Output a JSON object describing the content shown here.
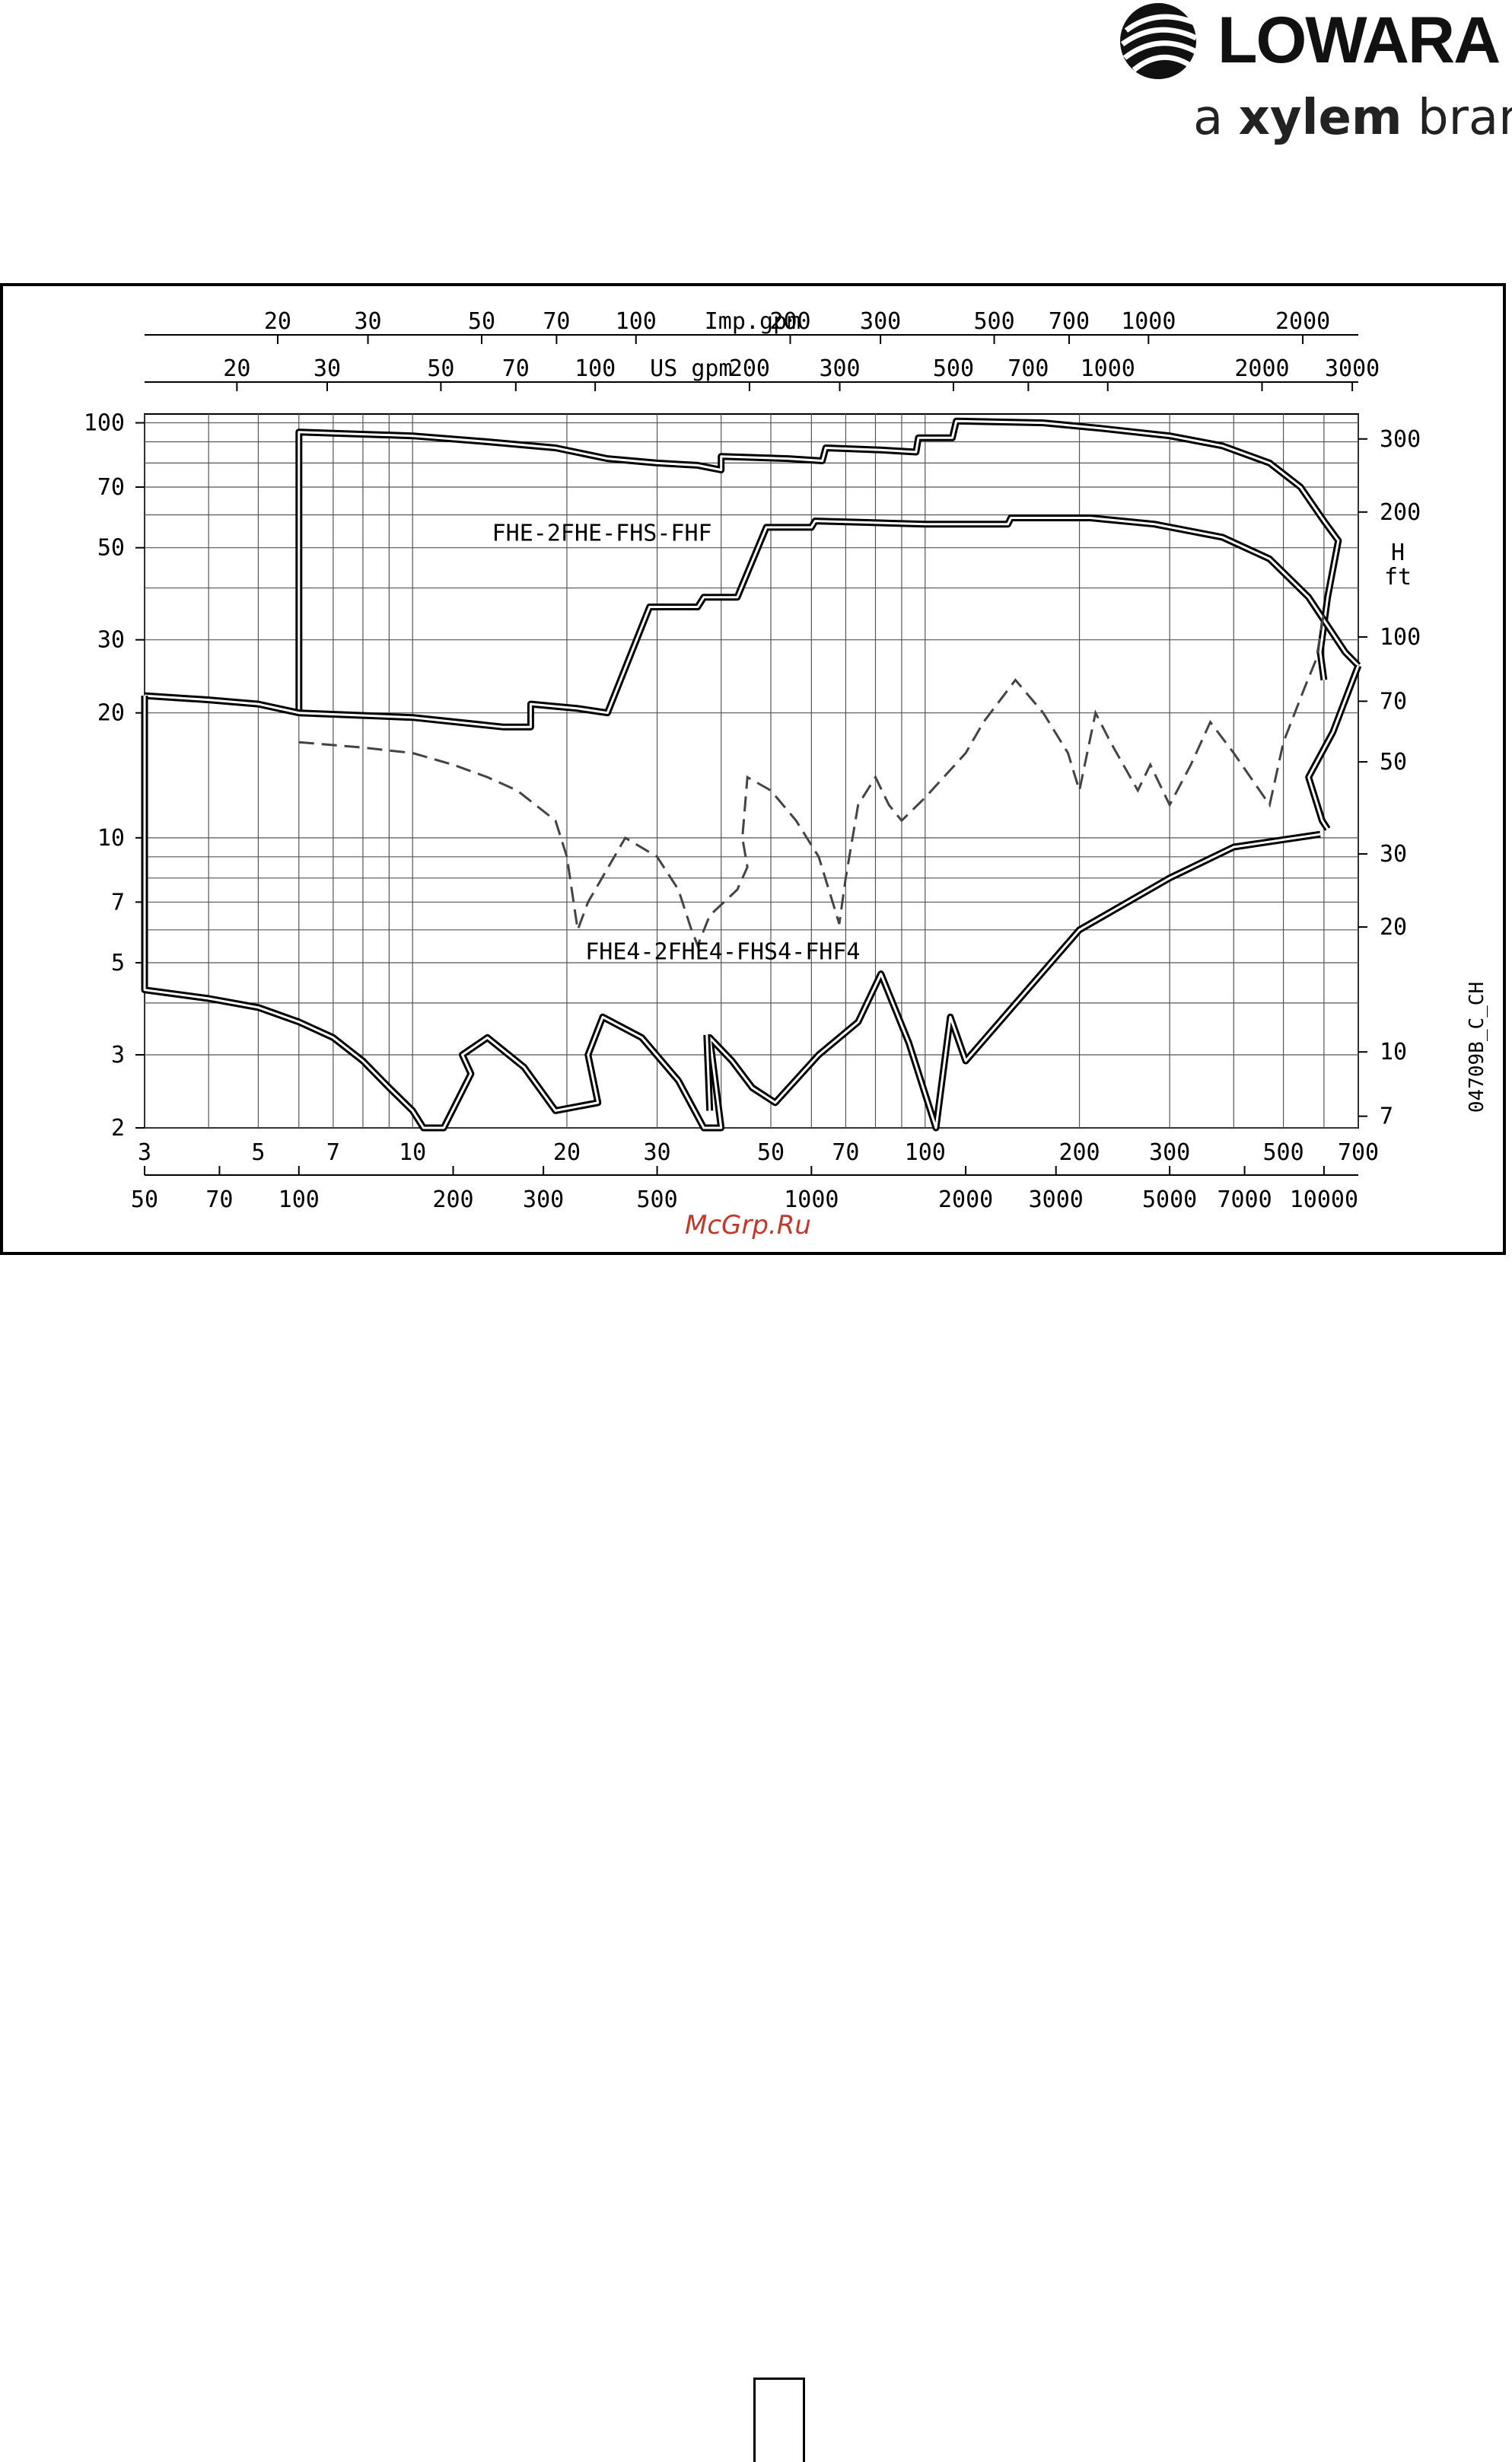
{
  "brand": {
    "name": "LOWARA",
    "tagline_pre": "a ",
    "tagline_bold": "xylem",
    "tagline_post": " brand",
    "logo_icon": "lowara-swirl-icon",
    "color": "#111111"
  },
  "watermark": "McGrp.Ru",
  "chart_data": {
    "type": "line",
    "title": "",
    "code": "04709B_C_CH",
    "scale": "log-log",
    "grid": true,
    "axes": {
      "x_bottom_inner": {
        "ticks": [
          "3",
          "5",
          "7",
          "10",
          "20",
          "30",
          "50",
          "70",
          "100",
          "200",
          "300",
          "500",
          "700"
        ],
        "range": [
          3,
          700
        ]
      },
      "x_bottom_outer": {
        "ticks": [
          "50",
          "70",
          "100",
          "200",
          "300",
          "500",
          "1000",
          "2000",
          "3000",
          "5000",
          "7000",
          "10000"
        ]
      },
      "x_top_imp": {
        "label": "Imp.gpm",
        "ticks": [
          "20",
          "30",
          "50",
          "70",
          "100",
          "200",
          "300",
          "500",
          "700",
          "1000",
          "2000"
        ]
      },
      "x_top_us": {
        "label": "US gpm",
        "ticks": [
          "20",
          "30",
          "50",
          "70",
          "100",
          "200",
          "300",
          "500",
          "700",
          "1000",
          "2000",
          "3000"
        ]
      },
      "y_left": {
        "ticks": [
          "2",
          "3",
          "5",
          "7",
          "10",
          "20",
          "30",
          "50",
          "70",
          "100"
        ],
        "range": [
          2,
          105
        ]
      },
      "y_right": {
        "label_h": "H",
        "label_unit": "ft",
        "ticks": [
          "7",
          "10",
          "20",
          "30",
          "50",
          "70",
          "100",
          "200",
          "300"
        ]
      }
    },
    "series": [
      {
        "name": "FHE-2FHE-FHS-FHF",
        "style": "double",
        "points": [
          [
            6,
            20
          ],
          [
            6,
            95
          ],
          [
            10,
            93
          ],
          [
            17,
            88
          ],
          [
            24,
            82
          ],
          [
            28,
            80
          ],
          [
            35,
            78
          ],
          [
            40,
            76
          ],
          [
            42,
            83
          ],
          [
            55,
            82
          ],
          [
            65,
            81
          ],
          [
            68,
            87
          ],
          [
            80,
            86
          ],
          [
            100,
            85
          ],
          [
            110,
            84
          ],
          [
            115,
            92
          ],
          [
            132,
            92
          ],
          [
            140,
            90
          ],
          [
            148,
            101
          ],
          [
            190,
            100
          ],
          [
            240,
            97
          ],
          [
            300,
            93
          ],
          [
            400,
            88
          ],
          [
            500,
            80
          ],
          [
            560,
            70
          ],
          [
            610,
            55
          ],
          [
            640,
            52
          ],
          [
            655,
            45
          ],
          [
            680,
            40
          ],
          [
            690,
            28
          ],
          [
            670,
            26
          ],
          [
            640,
            23
          ],
          [
            590,
            20
          ],
          [
            570,
            18
          ],
          [
            550,
            16
          ],
          [
            520,
            14
          ],
          [
            480,
            15
          ],
          [
            470,
            13
          ],
          [
            450,
            11
          ],
          [
            420,
            10
          ],
          [
            400,
            10
          ],
          [
            340,
            9
          ],
          [
            300,
            8
          ],
          [
            240,
            7.2
          ],
          [
            200,
            6
          ],
          [
            150,
            4.2
          ],
          [
            125,
            3
          ],
          [
            115,
            3.8
          ],
          [
            105,
            2.1
          ],
          [
            100,
            2.4
          ],
          [
            85,
            3.7
          ],
          [
            70,
            3.7
          ],
          [
            50,
            2.3
          ],
          [
            42,
            2.9
          ],
          [
            38,
            3.6
          ],
          [
            36,
            3.8
          ],
          [
            30,
            3.4
          ],
          [
            25,
            3
          ],
          [
            23,
            2
          ],
          [
            20,
            2
          ],
          [
            18,
            3.3
          ],
          [
            17,
            3.8
          ],
          [
            16,
            3
          ],
          [
            14,
            3.5
          ],
          [
            12,
            3.1
          ],
          [
            11,
            2.9
          ],
          [
            10,
            2.7
          ],
          [
            9,
            2.5
          ],
          [
            8,
            2.3
          ],
          [
            7,
            2.1
          ],
          [
            5.7,
            2.2
          ],
          [
            5.6,
            2.8
          ],
          [
            5.5,
            3.4
          ],
          [
            6,
            3.8
          ],
          [
            10,
            2.8
          ],
          [
            13,
            2.4
          ],
          [
            14,
            2.3
          ],
          [
            15,
            2.6
          ],
          [
            14,
            3
          ],
          [
            18,
            3.2
          ],
          [
            22,
            3.3
          ],
          [
            25,
            2.7
          ],
          [
            30,
            2.3
          ],
          [
            40,
            2.2
          ],
          [
            45,
            2.4
          ],
          [
            55,
            2.2
          ],
          [
            60,
            2.3
          ],
          [
            70,
            2.1
          ],
          [
            80,
            2.5
          ],
          [
            90,
            3.4
          ],
          [
            100,
            4.5
          ],
          [
            105,
            3.7
          ],
          [
            110,
            2.8
          ],
          [
            115,
            2
          ],
          [
            120,
            3.2
          ],
          [
            125,
            2.7
          ],
          [
            130,
            3.1
          ],
          [
            140,
            3.4
          ],
          [
            160,
            3.8
          ],
          [
            200,
            5
          ],
          [
            300,
            6.8
          ],
          [
            400,
            8.8
          ],
          [
            520,
            9.5
          ],
          [
            580,
            10
          ]
        ],
        "main_outline": [
          [
            6,
            20
          ],
          [
            6,
            95
          ],
          [
            12,
            92
          ],
          [
            17,
            89
          ],
          [
            24,
            82
          ],
          [
            28,
            80
          ],
          [
            37,
            78
          ],
          [
            40,
            76
          ],
          [
            40,
            83
          ],
          [
            54,
            82
          ],
          [
            63,
            81
          ],
          [
            64,
            87
          ],
          [
            80,
            86
          ],
          [
            95,
            85
          ],
          [
            97,
            92
          ],
          [
            113,
            92
          ],
          [
            115,
            101
          ],
          [
            180,
            100
          ],
          [
            240,
            97
          ],
          [
            300,
            93
          ],
          [
            420,
            88
          ],
          [
            520,
            80
          ],
          [
            580,
            70
          ],
          [
            620,
            60
          ],
          [
            650,
            52
          ],
          [
            635,
            40
          ],
          [
            600,
            30
          ],
          [
            590,
            26
          ],
          [
            600,
            24
          ],
          [
            615,
            20
          ],
          [
            640,
            17
          ],
          [
            665,
            16
          ],
          [
            700,
            23
          ],
          [
            690,
            25
          ]
        ]
      },
      {
        "name": "FHE4-2FHE4-FHS4-FHF4",
        "style": "double"
      },
      {
        "name": "dashed",
        "style": "dashed"
      }
    ],
    "labels": [
      {
        "text": "FHE-2FHE-FHS-FHF",
        "series": 0
      },
      {
        "text": "FHE4-2FHE4-FHS4-FHF4",
        "series": 1
      }
    ]
  }
}
